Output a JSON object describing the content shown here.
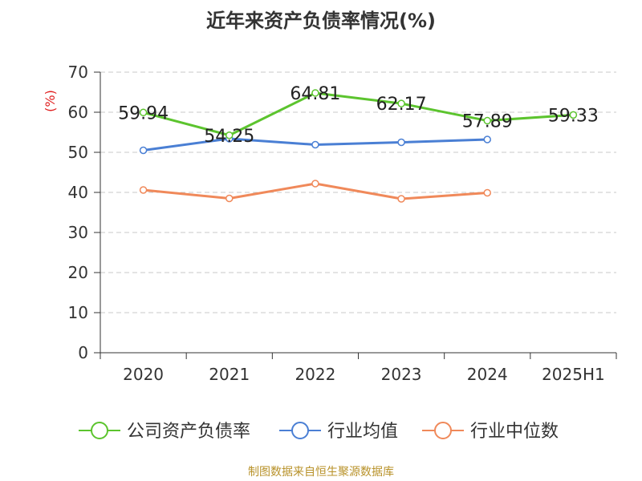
{
  "chart_data": {
    "type": "line",
    "title": "近年来资产负债率情况(%)",
    "ylabel": "(%)",
    "categories": [
      "2020",
      "2021",
      "2022",
      "2023",
      "2024",
      "2025H1"
    ],
    "ylim": [
      0,
      70
    ],
    "yticks": [
      0,
      10,
      20,
      30,
      40,
      50,
      60,
      70
    ],
    "grid": true,
    "legend_position": "bottom",
    "series": [
      {
        "name": "公司资产负债率",
        "color": "#5cc42e",
        "values": [
          59.94,
          54.25,
          64.81,
          62.17,
          57.89,
          59.33
        ],
        "labels": [
          "59.94",
          "54.25",
          "64.81",
          "62.17",
          "57.89",
          "59.33"
        ]
      },
      {
        "name": "行业均值",
        "color": "#4a7fd4",
        "values": [
          50.5,
          53.4,
          51.9,
          52.5,
          53.2,
          null
        ]
      },
      {
        "name": "行业中位数",
        "color": "#f0895a",
        "values": [
          40.6,
          38.5,
          42.2,
          38.4,
          39.9,
          null
        ]
      }
    ]
  },
  "source": "制图数据来自恒生聚源数据库"
}
